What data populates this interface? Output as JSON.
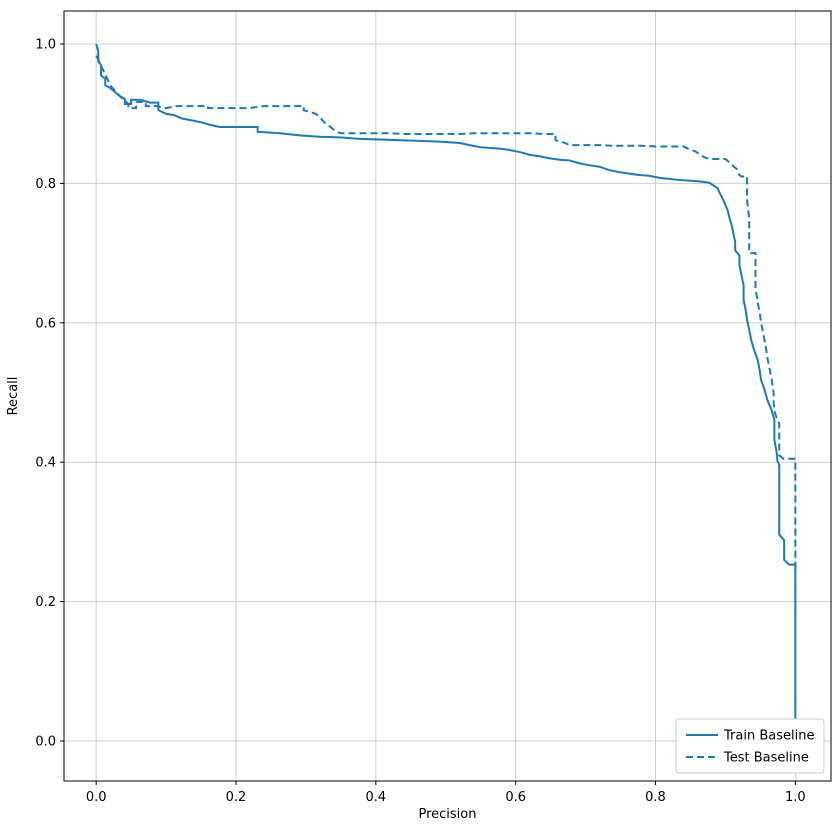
{
  "chart_data": {
    "type": "line",
    "title": "",
    "xlabel": "Precision",
    "ylabel": "Recall",
    "xlim": [
      -0.046,
      1.051
    ],
    "ylim": [
      -0.0574,
      1.0474
    ],
    "xticks": [
      0.0,
      0.2,
      0.4,
      0.6,
      0.8,
      1.0
    ],
    "yticks": [
      0.0,
      0.2,
      0.4,
      0.6,
      0.8,
      1.0
    ],
    "grid": true,
    "grid_color": "#cfcfcf",
    "spine_color": "#000000",
    "background_color": "#ffffff",
    "legend_position": "lower right",
    "legend_border_color": "#cccccc",
    "series": [
      {
        "name": "Train Baseline",
        "style": "solid",
        "color": "#1f77b4",
        "points": [
          [
            0.0,
            1.0
          ],
          [
            0.003,
            0.99
          ],
          [
            0.003,
            0.975
          ],
          [
            0.007,
            0.97
          ],
          [
            0.007,
            0.955
          ],
          [
            0.013,
            0.95
          ],
          [
            0.013,
            0.941
          ],
          [
            0.02,
            0.937
          ],
          [
            0.027,
            0.931
          ],
          [
            0.033,
            0.926
          ],
          [
            0.041,
            0.921
          ],
          [
            0.041,
            0.914
          ],
          [
            0.05,
            0.914
          ],
          [
            0.05,
            0.92
          ],
          [
            0.063,
            0.92
          ],
          [
            0.077,
            0.916
          ],
          [
            0.089,
            0.916
          ],
          [
            0.089,
            0.905
          ],
          [
            0.1,
            0.9
          ],
          [
            0.111,
            0.898
          ],
          [
            0.123,
            0.893
          ],
          [
            0.134,
            0.891
          ],
          [
            0.149,
            0.888
          ],
          [
            0.163,
            0.884
          ],
          [
            0.177,
            0.881
          ],
          [
            0.231,
            0.881
          ],
          [
            0.231,
            0.874
          ],
          [
            0.263,
            0.872
          ],
          [
            0.291,
            0.869
          ],
          [
            0.32,
            0.867
          ],
          [
            0.349,
            0.866
          ],
          [
            0.377,
            0.864
          ],
          [
            0.406,
            0.863
          ],
          [
            0.434,
            0.862
          ],
          [
            0.463,
            0.861
          ],
          [
            0.491,
            0.86
          ],
          [
            0.52,
            0.858
          ],
          [
            0.534,
            0.855
          ],
          [
            0.549,
            0.852
          ],
          [
            0.577,
            0.85
          ],
          [
            0.591,
            0.848
          ],
          [
            0.606,
            0.845
          ],
          [
            0.62,
            0.841
          ],
          [
            0.634,
            0.839
          ],
          [
            0.649,
            0.836
          ],
          [
            0.663,
            0.834
          ],
          [
            0.677,
            0.833
          ],
          [
            0.691,
            0.829
          ],
          [
            0.706,
            0.826
          ],
          [
            0.72,
            0.824
          ],
          [
            0.734,
            0.819
          ],
          [
            0.749,
            0.816
          ],
          [
            0.763,
            0.814
          ],
          [
            0.777,
            0.812
          ],
          [
            0.791,
            0.811
          ],
          [
            0.806,
            0.808
          ],
          [
            0.834,
            0.805
          ],
          [
            0.863,
            0.803
          ],
          [
            0.877,
            0.801
          ],
          [
            0.883,
            0.797
          ],
          [
            0.889,
            0.793
          ],
          [
            0.891,
            0.788
          ],
          [
            0.894,
            0.782
          ],
          [
            0.897,
            0.776
          ],
          [
            0.9,
            0.769
          ],
          [
            0.903,
            0.762
          ],
          [
            0.906,
            0.75
          ],
          [
            0.909,
            0.74
          ],
          [
            0.911,
            0.73
          ],
          [
            0.914,
            0.716
          ],
          [
            0.914,
            0.704
          ],
          [
            0.92,
            0.697
          ],
          [
            0.92,
            0.683
          ],
          [
            0.923,
            0.668
          ],
          [
            0.926,
            0.654
          ],
          [
            0.926,
            0.633
          ],
          [
            0.929,
            0.618
          ],
          [
            0.931,
            0.604
          ],
          [
            0.934,
            0.59
          ],
          [
            0.937,
            0.575
          ],
          [
            0.941,
            0.561
          ],
          [
            0.946,
            0.547
          ],
          [
            0.949,
            0.532
          ],
          [
            0.951,
            0.518
          ],
          [
            0.956,
            0.504
          ],
          [
            0.96,
            0.489
          ],
          [
            0.963,
            0.482
          ],
          [
            0.966,
            0.475
          ],
          [
            0.97,
            0.461
          ],
          [
            0.97,
            0.432
          ],
          [
            0.974,
            0.41
          ],
          [
            0.974,
            0.403
          ],
          [
            0.977,
            0.396
          ],
          [
            0.977,
            0.296
          ],
          [
            0.984,
            0.288
          ],
          [
            0.984,
            0.26
          ],
          [
            0.991,
            0.253
          ],
          [
            1.0,
            0.253
          ],
          [
            1.0,
            0.03
          ]
        ]
      },
      {
        "name": "Test Baseline",
        "style": "dashed",
        "color": "#1f77b4",
        "points": [
          [
            0.0,
            0.983
          ],
          [
            0.003,
            0.978
          ],
          [
            0.006,
            0.97
          ],
          [
            0.01,
            0.963
          ],
          [
            0.013,
            0.956
          ],
          [
            0.017,
            0.948
          ],
          [
            0.02,
            0.941
          ],
          [
            0.024,
            0.936
          ],
          [
            0.029,
            0.931
          ],
          [
            0.034,
            0.925
          ],
          [
            0.04,
            0.92
          ],
          [
            0.046,
            0.914
          ],
          [
            0.046,
            0.908
          ],
          [
            0.057,
            0.908
          ],
          [
            0.057,
            0.917
          ],
          [
            0.071,
            0.917
          ],
          [
            0.071,
            0.911
          ],
          [
            0.086,
            0.911
          ],
          [
            0.1,
            0.908
          ],
          [
            0.114,
            0.911
          ],
          [
            0.16,
            0.911
          ],
          [
            0.16,
            0.908
          ],
          [
            0.217,
            0.908
          ],
          [
            0.24,
            0.911
          ],
          [
            0.297,
            0.911
          ],
          [
            0.297,
            0.905
          ],
          [
            0.314,
            0.9
          ],
          [
            0.32,
            0.895
          ],
          [
            0.326,
            0.888
          ],
          [
            0.334,
            0.882
          ],
          [
            0.34,
            0.877
          ],
          [
            0.349,
            0.872
          ],
          [
            0.42,
            0.872
          ],
          [
            0.44,
            0.871
          ],
          [
            0.52,
            0.871
          ],
          [
            0.54,
            0.872
          ],
          [
            0.62,
            0.872
          ],
          [
            0.64,
            0.871
          ],
          [
            0.657,
            0.871
          ],
          [
            0.657,
            0.862
          ],
          [
            0.671,
            0.858
          ],
          [
            0.677,
            0.855
          ],
          [
            0.72,
            0.855
          ],
          [
            0.737,
            0.854
          ],
          [
            0.78,
            0.854
          ],
          [
            0.8,
            0.853
          ],
          [
            0.84,
            0.853
          ],
          [
            0.846,
            0.85
          ],
          [
            0.857,
            0.846
          ],
          [
            0.863,
            0.842
          ],
          [
            0.869,
            0.838
          ],
          [
            0.874,
            0.836
          ],
          [
            0.88,
            0.835
          ],
          [
            0.9,
            0.835
          ],
          [
            0.906,
            0.83
          ],
          [
            0.911,
            0.825
          ],
          [
            0.917,
            0.82
          ],
          [
            0.92,
            0.812
          ],
          [
            0.923,
            0.81
          ],
          [
            0.931,
            0.81
          ],
          [
            0.931,
            0.775
          ],
          [
            0.934,
            0.75
          ],
          [
            0.934,
            0.7
          ],
          [
            0.943,
            0.7
          ],
          [
            0.943,
            0.65
          ],
          [
            0.946,
            0.63
          ],
          [
            0.949,
            0.615
          ],
          [
            0.951,
            0.6
          ],
          [
            0.954,
            0.585
          ],
          [
            0.957,
            0.57
          ],
          [
            0.96,
            0.55
          ],
          [
            0.963,
            0.535
          ],
          [
            0.966,
            0.52
          ],
          [
            0.969,
            0.5
          ],
          [
            0.969,
            0.485
          ],
          [
            0.971,
            0.47
          ],
          [
            0.974,
            0.462
          ],
          [
            0.977,
            0.455
          ],
          [
            0.977,
            0.41
          ],
          [
            0.983,
            0.405
          ],
          [
            1.0,
            0.405
          ],
          [
            1.0,
            0.25
          ]
        ]
      }
    ]
  }
}
